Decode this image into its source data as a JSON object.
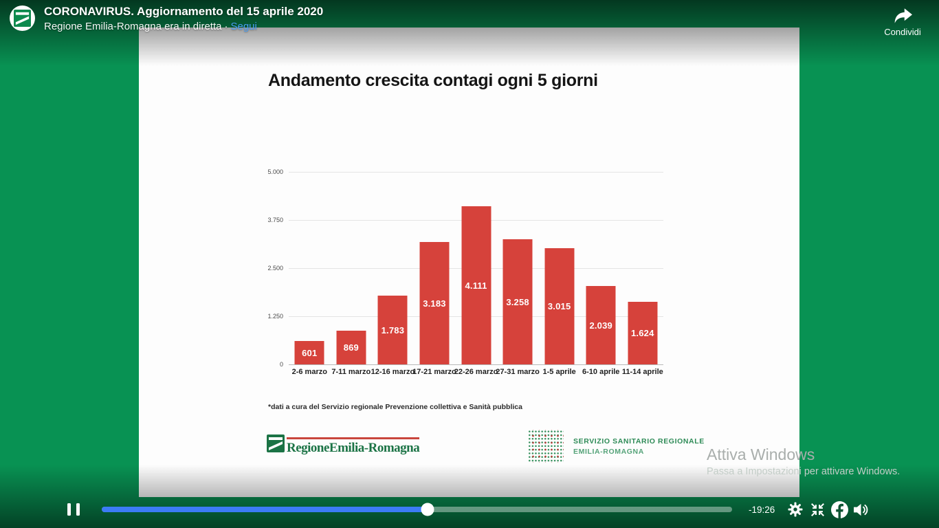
{
  "player": {
    "header": {
      "title": "CORONAVIRUS. Aggiornamento del 15 aprile 2020",
      "subtitle": "Regione Emilia-Romagna era in diretta",
      "separator": "·",
      "follow_link": "Segui",
      "share_label": "Condividi"
    },
    "controls": {
      "time_remaining": "-19:26",
      "progress_percent": 51.7
    },
    "icons": [
      "page-avatar",
      "share-arrow-icon",
      "pause-icon",
      "gear-icon",
      "exit-fullscreen-icon",
      "facebook-logo-icon",
      "volume-icon"
    ],
    "colors": {
      "background_green": "#089253",
      "progress_blue": "#3c7cf6",
      "follow_link_blue": "#4aa0f5"
    }
  },
  "slide": {
    "footnote": "*dati a cura del Servizio regionale Prevenzione collettiva e Sanità pubblica",
    "logos": {
      "region_name": "RegioneEmilia-Romagna",
      "ssr_line1": "SERVIZIO SANITARIO REGIONALE",
      "ssr_line2": "EMILIA-ROMAGNA"
    }
  },
  "chart_data": {
    "type": "bar",
    "title": "Andamento crescita contagi ogni 5 giorni",
    "categories": [
      "2-6 marzo",
      "7-11 marzo",
      "12-16 marzo",
      "17-21 marzo",
      "22-26 marzo",
      "27-31 marzo",
      "1-5 aprile",
      "6-10 aprile",
      "11-14 aprile"
    ],
    "values": [
      601,
      869,
      1783,
      3183,
      4111,
      3258,
      3015,
      2039,
      1624
    ],
    "value_labels": [
      "601",
      "869",
      "1.783",
      "3.183",
      "4.111",
      "3.258",
      "3.015",
      "2.039",
      "1.624"
    ],
    "y_ticks": [
      "5.000",
      "3.750",
      "2.500",
      "1.250",
      "0"
    ],
    "ylim": [
      0,
      5000
    ],
    "xlabel": "",
    "ylabel": "",
    "grid": true,
    "legend": "none",
    "bar_color": "#d6423b"
  },
  "watermark": {
    "line1": "Attiva Windows",
    "line2": "Passa a Impostazioni per attivare Windows."
  }
}
